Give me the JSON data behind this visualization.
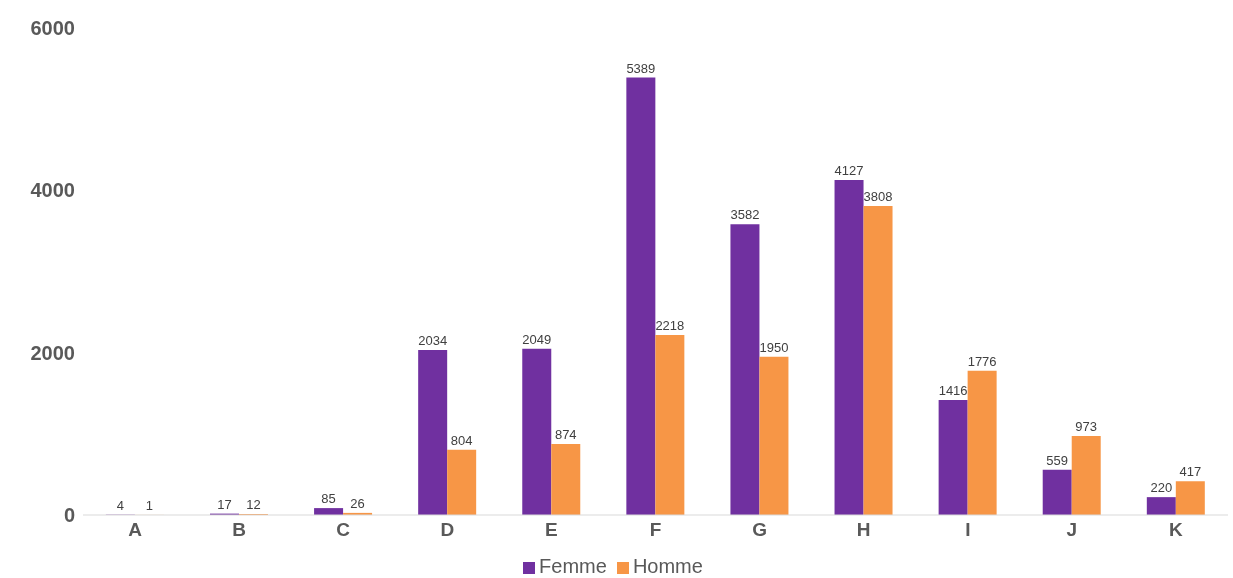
{
  "chart_data": {
    "type": "bar",
    "categories": [
      "A",
      "B",
      "C",
      "D",
      "E",
      "F",
      "G",
      "H",
      "I",
      "J",
      "K"
    ],
    "series": [
      {
        "name": "Femme",
        "color": "#7030a0",
        "values": [
          4,
          17,
          85,
          2034,
          2049,
          5389,
          3582,
          4127,
          1416,
          559,
          220
        ]
      },
      {
        "name": "Homme",
        "color": "#f79646",
        "values": [
          1,
          12,
          26,
          804,
          874,
          2218,
          1950,
          3808,
          1776,
          973,
          417
        ]
      }
    ],
    "ylim": [
      0,
      6000
    ],
    "yticks": [
      0,
      2000,
      4000,
      6000
    ],
    "grid": false,
    "legend": "bottom",
    "data_labels": true
  }
}
